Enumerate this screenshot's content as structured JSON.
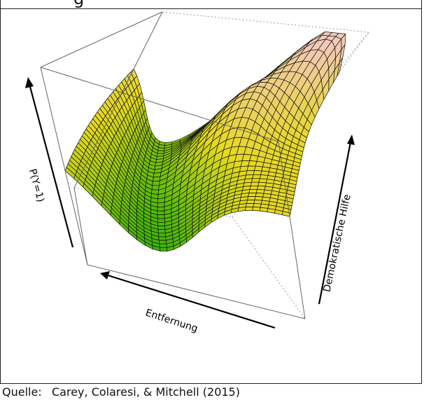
{
  "figure": {
    "title_fragment": "g",
    "source_label": "Quelle:",
    "source_text": "Carey, Colaresi, & Mitchell (2015)"
  },
  "chart_data": {
    "type": "surface",
    "axes": {
      "vertical_label": "P(Y=1)",
      "front_label": "Entfernung",
      "side_label": "Demokratische Hilfe"
    },
    "tick_labels": false,
    "mesh_resolution": 30,
    "colors": {
      "low": "#2fb300",
      "mid": "#e5d91a",
      "high": "#f2c9b8",
      "mesh": "#111111",
      "box": "#666666"
    }
  }
}
